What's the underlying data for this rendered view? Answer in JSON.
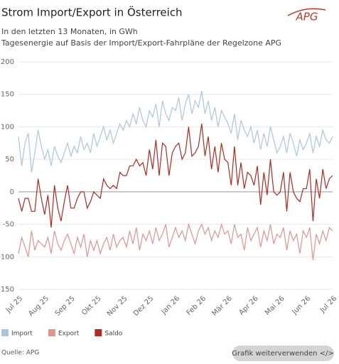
{
  "chart_data": {
    "type": "line",
    "title": "Strom Import/Export in Österreich",
    "subtitle": [
      "In den letzten 13 Monaten, in GWh",
      "Tagesenergie auf Basis der Import/Export-Fahrpläne der Regelzone APG"
    ],
    "logo": "APG",
    "source": "Quelle: APG",
    "button": "Grafik weiterverwenden </>",
    "categories": [
      "Jul 25",
      null,
      null,
      null,
      null,
      null,
      null,
      null,
      "Aug 25",
      null,
      null,
      null,
      null,
      null,
      null,
      null,
      "Sep 25",
      null,
      null,
      null,
      null,
      null,
      null,
      null,
      "Okt 25",
      null,
      null,
      null,
      null,
      null,
      null,
      null,
      "Nov 25",
      null,
      null,
      null,
      null,
      null,
      null,
      null,
      "Dez 25",
      null,
      null,
      null,
      null,
      null,
      null,
      null,
      "Jan 26",
      null,
      null,
      null,
      null,
      null,
      null,
      null,
      "Feb 26",
      null,
      null,
      null,
      null,
      null,
      null,
      null,
      "Mär 26",
      null,
      null,
      null,
      null,
      null,
      null,
      null,
      "Apr 26",
      null,
      null,
      null,
      null,
      null,
      null,
      null,
      "Mai 26",
      null,
      null,
      null,
      null,
      null,
      null,
      null,
      "Jun 26",
      null,
      null,
      null,
      null,
      null,
      null,
      null,
      "Jul 26"
    ],
    "series": [
      {
        "name": "Import",
        "color": "#a9c7dc",
        "values": [
          85,
          40,
          75,
          90,
          30,
          60,
          95,
          70,
          50,
          65,
          40,
          70,
          55,
          45,
          60,
          75,
          55,
          70,
          60,
          85,
          65,
          75,
          60,
          90,
          70,
          85,
          100,
          80,
          95,
          75,
          90,
          105,
          95,
          110,
          100,
          120,
          105,
          130,
          110,
          100,
          125,
          115,
          135,
          100,
          140,
          120,
          110,
          130,
          125,
          145,
          110,
          135,
          150,
          120,
          140,
          130,
          155,
          120,
          140,
          110,
          130,
          100,
          125,
          115,
          105,
          90,
          120,
          80,
          110,
          95,
          85,
          100,
          75,
          95,
          65,
          90,
          70,
          100,
          80,
          60,
          70,
          85,
          60,
          90,
          75,
          55,
          80,
          65,
          75,
          90,
          60,
          85,
          70,
          95,
          80,
          75,
          85
        ]
      },
      {
        "name": "Export",
        "color": "#e0948e",
        "values": [
          -95,
          -70,
          -85,
          -100,
          -60,
          -90,
          -75,
          -80,
          -85,
          -70,
          -95,
          -60,
          -80,
          -90,
          -75,
          -65,
          -80,
          -95,
          -70,
          -85,
          -65,
          -100,
          -75,
          -90,
          -75,
          -95,
          -80,
          -70,
          -90,
          -65,
          -85,
          -75,
          -70,
          -85,
          -60,
          -80,
          -55,
          -90,
          -65,
          -75,
          -60,
          -80,
          -55,
          -75,
          -65,
          -50,
          -85,
          -70,
          -55,
          -70,
          -60,
          -75,
          -50,
          -65,
          -80,
          -60,
          -50,
          -65,
          -55,
          -75,
          -60,
          -70,
          -50,
          -65,
          -60,
          -80,
          -50,
          -70,
          -65,
          -90,
          -55,
          -75,
          -65,
          -55,
          -85,
          -60,
          -75,
          -50,
          -80,
          -65,
          -70,
          -55,
          -90,
          -60,
          -75,
          -65,
          -95,
          -60,
          -70,
          -55,
          -105,
          -65,
          -80,
          -60,
          -75,
          -55,
          -60
        ]
      },
      {
        "name": "Saldo",
        "color": "#b3281f",
        "values": [
          -10,
          -30,
          -10,
          -10,
          -30,
          -30,
          20,
          -10,
          -35,
          -5,
          -55,
          10,
          -25,
          -45,
          -15,
          10,
          -25,
          -25,
          -10,
          0,
          0,
          -25,
          -15,
          0,
          -5,
          -10,
          20,
          10,
          5,
          10,
          5,
          30,
          25,
          25,
          40,
          40,
          50,
          40,
          45,
          25,
          65,
          35,
          80,
          25,
          75,
          70,
          25,
          60,
          70,
          75,
          50,
          60,
          100,
          55,
          60,
          70,
          105,
          55,
          85,
          35,
          70,
          30,
          75,
          50,
          45,
          10,
          70,
          10,
          45,
          5,
          30,
          25,
          10,
          40,
          -20,
          30,
          -5,
          50,
          0,
          -5,
          0,
          30,
          -30,
          30,
          0,
          -10,
          -15,
          5,
          5,
          35,
          -45,
          20,
          -10,
          35,
          5,
          20,
          25
        ]
      }
    ],
    "ylim": [
      -150,
      200
    ],
    "yticks": [
      -150,
      -100,
      -50,
      0,
      50,
      100,
      150,
      200
    ],
    "grid": true
  }
}
